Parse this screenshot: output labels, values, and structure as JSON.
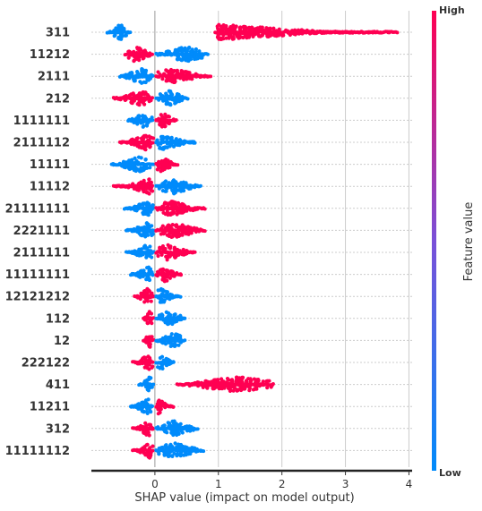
{
  "chart_data": {
    "type": "scatter",
    "title": "",
    "xlabel": "SHAP value (impact on model output)",
    "ylabel": "",
    "xlim": [
      -1.0,
      4.05
    ],
    "xticks": [
      0,
      1,
      2,
      3,
      4
    ],
    "grid": true,
    "colors": {
      "low": "#008bfb",
      "high": "#ff0052"
    },
    "colorbar": {
      "title": "Feature value",
      "low_label": "Low",
      "high_label": "High"
    },
    "features": [
      {
        "name": "311",
        "left": [
          -0.75,
          -0.55,
          -0.38
        ],
        "right": [
          0.95,
          1.05,
          3.82
        ],
        "left_color": "low",
        "right_color": "high"
      },
      {
        "name": "11212",
        "left": [
          -0.47,
          -0.3,
          -0.02
        ],
        "right": [
          0.02,
          0.5,
          0.85
        ],
        "left_color": "high",
        "right_color": "low"
      },
      {
        "name": "2111",
        "left": [
          -0.55,
          -0.2,
          -0.02
        ],
        "right": [
          0.02,
          0.28,
          0.88
        ],
        "left_color": "low",
        "right_color": "high"
      },
      {
        "name": "212",
        "left": [
          -0.65,
          -0.22,
          -0.02
        ],
        "right": [
          0.02,
          0.22,
          0.52
        ],
        "left_color": "high",
        "right_color": "low"
      },
      {
        "name": "1111111",
        "left": [
          -0.42,
          -0.18,
          -0.02
        ],
        "right": [
          0.02,
          0.12,
          0.35
        ],
        "left_color": "low",
        "right_color": "high"
      },
      {
        "name": "2111112",
        "left": [
          -0.55,
          -0.15,
          -0.02
        ],
        "right": [
          0.02,
          0.15,
          0.65
        ],
        "left_color": "high",
        "right_color": "low"
      },
      {
        "name": "11111",
        "left": [
          -0.68,
          -0.25,
          -0.02
        ],
        "right": [
          0.02,
          0.1,
          0.38
        ],
        "left_color": "low",
        "right_color": "high"
      },
      {
        "name": "11112",
        "left": [
          -0.65,
          -0.08,
          -0.02
        ],
        "right": [
          0.02,
          0.3,
          0.72
        ],
        "left_color": "high",
        "right_color": "low"
      },
      {
        "name": "21111111",
        "left": [
          -0.48,
          -0.12,
          -0.02
        ],
        "right": [
          0.02,
          0.25,
          0.8
        ],
        "left_color": "low",
        "right_color": "high"
      },
      {
        "name": "2221111",
        "left": [
          -0.45,
          -0.12,
          -0.02
        ],
        "right": [
          0.02,
          0.3,
          0.8
        ],
        "left_color": "low",
        "right_color": "high"
      },
      {
        "name": "2111111",
        "left": [
          -0.45,
          -0.12,
          -0.02
        ],
        "right": [
          0.02,
          0.2,
          0.65
        ],
        "left_color": "low",
        "right_color": "high"
      },
      {
        "name": "11111111",
        "left": [
          -0.38,
          -0.1,
          -0.02
        ],
        "right": [
          0.02,
          0.15,
          0.42
        ],
        "left_color": "low",
        "right_color": "high"
      },
      {
        "name": "12121212",
        "left": [
          -0.32,
          -0.12,
          -0.02
        ],
        "right": [
          0.02,
          0.1,
          0.42
        ],
        "left_color": "high",
        "right_color": "low"
      },
      {
        "name": "112",
        "left": [
          -0.18,
          -0.08,
          -0.02
        ],
        "right": [
          0.02,
          0.22,
          0.48
        ],
        "left_color": "high",
        "right_color": "low"
      },
      {
        "name": "12",
        "left": [
          -0.18,
          -0.08,
          -0.02
        ],
        "right": [
          0.02,
          0.3,
          0.48
        ],
        "left_color": "high",
        "right_color": "low"
      },
      {
        "name": "222122",
        "left": [
          -0.35,
          -0.1,
          -0.02
        ],
        "right": [
          0.02,
          0.1,
          0.3
        ],
        "left_color": "high",
        "right_color": "low"
      },
      {
        "name": "411",
        "left": [
          -0.25,
          -0.08,
          -0.02
        ],
        "right": [
          0.35,
          1.3,
          1.88
        ],
        "left_color": "low",
        "right_color": "high"
      },
      {
        "name": "11211",
        "left": [
          -0.38,
          -0.12,
          -0.02
        ],
        "right": [
          0.02,
          0.05,
          0.3
        ],
        "left_color": "low",
        "right_color": "high"
      },
      {
        "name": "312",
        "left": [
          -0.35,
          -0.1,
          -0.02
        ],
        "right": [
          0.02,
          0.3,
          0.68
        ],
        "left_color": "high",
        "right_color": "low"
      },
      {
        "name": "11111112",
        "left": [
          -0.35,
          -0.08,
          -0.02
        ],
        "right": [
          0.02,
          0.3,
          0.78
        ],
        "left_color": "high",
        "right_color": "low"
      }
    ]
  }
}
